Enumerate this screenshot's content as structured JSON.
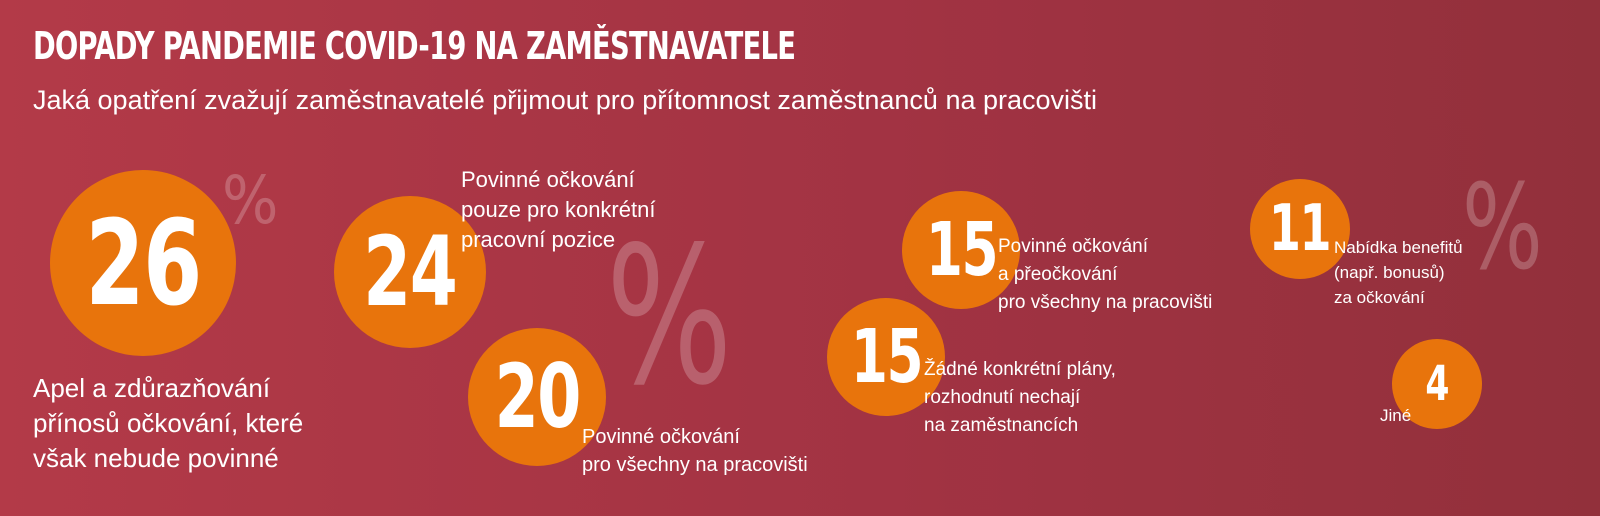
{
  "title": "DOPADY PANDEMIE COVID-19 NA ZAMĚSTNAVATELE",
  "subtitle": "Jaká opatření zvažují zaměstnavatelé přijmout pro přítomnost zaměstnanců na pracovišti",
  "percent_symbol": "%",
  "colors": {
    "background": "#a8364a",
    "bubble": "#e8740c",
    "text": "#ffffff"
  },
  "chart_data": {
    "type": "bubble",
    "title": "DOPADY PANDEMIE COVID-19 NA ZAMĚSTNAVATELE",
    "subtitle": "Jaká opatření zvažují zaměstnavatelé přijmout pro přítomnost zaměstnanců na pracovišti",
    "unit": "%",
    "items": [
      {
        "value": 26,
        "value_label": "26",
        "label_lines": [
          "Apel a zdůrazňování",
          "přínosů očkování, které",
          "však nebude povinné"
        ]
      },
      {
        "value": 24,
        "value_label": "24",
        "label_lines": [
          "Povinné očkování",
          "pouze pro konkrétní",
          "pracovní pozice"
        ]
      },
      {
        "value": 20,
        "value_label": "20",
        "label_lines": [
          "Povinné očkování",
          "pro všechny na pracovišti"
        ]
      },
      {
        "value": 15,
        "value_label": "15",
        "label_lines": [
          "Povinné očkování",
          "a přeočkování",
          "pro všechny na pracovišti"
        ]
      },
      {
        "value": 15,
        "value_label": "15",
        "label_lines": [
          "Žádné konkrétní plány,",
          "rozhodnutí nechají",
          "na zaměstnancích"
        ]
      },
      {
        "value": 11,
        "value_label": "11",
        "label_lines": [
          "Nabídka benefitů",
          "(např. bonusů)",
          "za očkování"
        ]
      },
      {
        "value": 4,
        "value_label": "4",
        "label_lines": [
          "Jiné"
        ]
      }
    ]
  }
}
